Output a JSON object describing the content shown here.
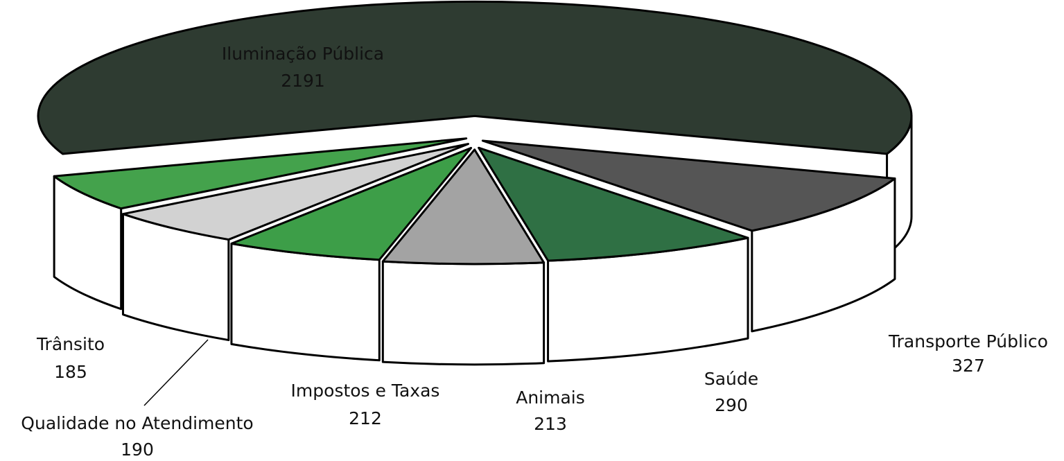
{
  "chart_data": {
    "type": "pie",
    "style": "3d-exploded",
    "title": "",
    "slices": [
      {
        "label": "Iluminação Pública",
        "value": 2191,
        "color": "#2e3b31"
      },
      {
        "label": "Transporte Público",
        "value": 327,
        "color": "#555555"
      },
      {
        "label": "Saúde",
        "value": 290,
        "color": "#2f7044"
      },
      {
        "label": "Animais",
        "value": 213,
        "color": "#a3a3a3"
      },
      {
        "label": "Impostos e Taxas",
        "value": 212,
        "color": "#3d9e48"
      },
      {
        "label": "Qualidade no Atendimento",
        "value": 190,
        "color": "#d2d2d2"
      },
      {
        "label": "Trânsito",
        "value": 185,
        "color": "#44a24c"
      }
    ],
    "side_color": "#ffffff",
    "outline_color": "#000000"
  }
}
